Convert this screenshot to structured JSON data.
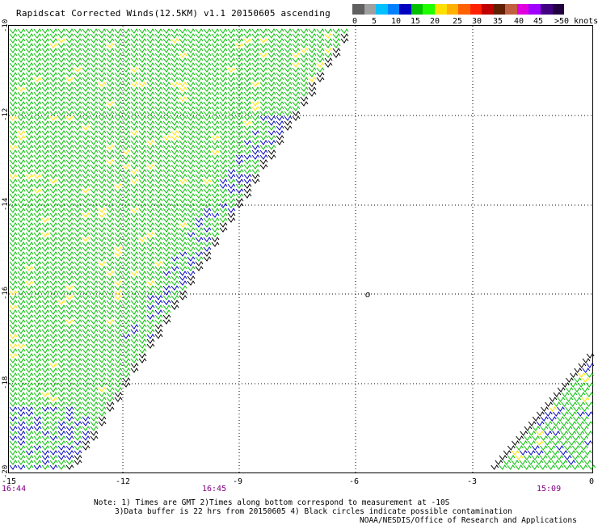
{
  "title": "Rapidscat Corrected Winds(12.5KM) v1.1 20150605 ascending",
  "colorbar": {
    "colors": [
      "#606060",
      "#a0a0a0",
      "#00c0ff",
      "#0080ff",
      "#0000c0",
      "#00c000",
      "#20ff00",
      "#ffe000",
      "#ffb000",
      "#ff6000",
      "#ff2000",
      "#c00000",
      "#602000",
      "#c06040",
      "#e000e0",
      "#a000ff",
      "#400080",
      "#200040"
    ],
    "labels": [
      "0",
      "5",
      "10",
      "15",
      "20",
      "25",
      "30",
      "35",
      "40",
      "45",
      ">50 knots"
    ]
  },
  "axes": {
    "x_labels": [
      "-15",
      "-12",
      "-9",
      "-6",
      "-3",
      "0"
    ],
    "y_labels": [
      "-10",
      "-12",
      "-14",
      "-16",
      "-18",
      "-20"
    ]
  },
  "time_labels": [
    "16:44",
    "16:45",
    "15:09"
  ],
  "map_marker": "o",
  "notes": {
    "line1": "Note: 1) Times are GMT 2)Times along bottom correspond to measurement at -10S",
    "line2": "3)Data buffer is 22 hrs from 20150605 4) Black circles indicate possible contamination",
    "line3": "NOAA/NESDIS/Office of Research and Applications"
  },
  "legend_colors": {
    "green": "#00c000",
    "blue": "#0000c0",
    "yellow": "#ffe000",
    "black": "#000000"
  }
}
